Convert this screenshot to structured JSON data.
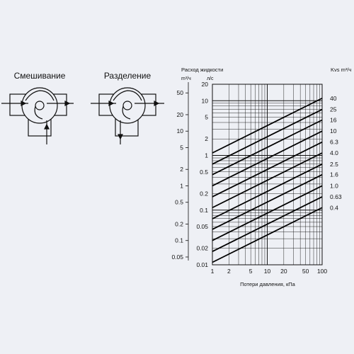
{
  "schematics": [
    {
      "title": "Смешивание"
    },
    {
      "title": "Разделение"
    }
  ],
  "chart_data": {
    "type": "line",
    "title": "Расход жидкости",
    "left_unit_outer": "m³/ч",
    "left_unit_inner": "л/с",
    "right_title": "Kvs m³/ч",
    "xlabel": "Потери давления, кПа",
    "x_scale": "log",
    "y_scale": "log",
    "xlim": [
      1,
      100
    ],
    "ylim_ls": [
      0.01,
      20
    ],
    "ylim_m3h": [
      0.036,
      72
    ],
    "x_ticks": [
      "1",
      "2",
      "5",
      "10",
      "20",
      "50",
      "100"
    ],
    "y_ticks_ls": [
      "20",
      "10",
      "5",
      "2",
      "1",
      "0.5",
      "0.2",
      "0.1",
      "0.05",
      "0.02",
      "0.01"
    ],
    "y_ticks_m3h": [
      "50",
      "20",
      "10",
      "5",
      "2",
      "1",
      "0.5",
      "0.2",
      "0.1",
      "0.05"
    ],
    "grid": true,
    "series": [
      {
        "name": "40",
        "x": [
          1,
          100
        ],
        "y": [
          1.11,
          11.1
        ]
      },
      {
        "name": "25",
        "x": [
          1,
          100
        ],
        "y": [
          0.694,
          6.94
        ]
      },
      {
        "name": "16",
        "x": [
          1,
          100
        ],
        "y": [
          0.444,
          4.44
        ]
      },
      {
        "name": "10",
        "x": [
          1,
          100
        ],
        "y": [
          0.278,
          2.78
        ]
      },
      {
        "name": "6.3",
        "x": [
          1,
          100
        ],
        "y": [
          0.175,
          1.75
        ]
      },
      {
        "name": "4.0",
        "x": [
          1,
          100
        ],
        "y": [
          0.111,
          1.11
        ]
      },
      {
        "name": "2.5",
        "x": [
          1,
          100
        ],
        "y": [
          0.0694,
          0.694
        ]
      },
      {
        "name": "1.6",
        "x": [
          1,
          100
        ],
        "y": [
          0.0444,
          0.444
        ]
      },
      {
        "name": "1.0",
        "x": [
          1,
          100
        ],
        "y": [
          0.0278,
          0.278
        ]
      },
      {
        "name": "0.63",
        "x": [
          1,
          100
        ],
        "y": [
          0.0175,
          0.175
        ]
      },
      {
        "name": "0.4",
        "x": [
          1,
          100
        ],
        "y": [
          0.0111,
          0.111
        ]
      }
    ]
  }
}
